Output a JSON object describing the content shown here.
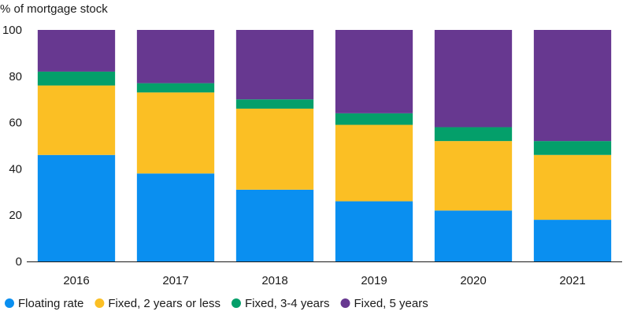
{
  "chart_data": {
    "type": "bar",
    "stacked": true,
    "ylabel": "% of mortgage stock",
    "ylim": [
      0,
      100
    ],
    "yticks": [
      0,
      20,
      40,
      60,
      80,
      100
    ],
    "categories": [
      "2016",
      "2017",
      "2018",
      "2019",
      "2020",
      "2021"
    ],
    "series": [
      {
        "name": "Floating rate",
        "color": "#0a8ff0",
        "values": [
          46,
          38,
          31,
          26,
          22,
          18
        ]
      },
      {
        "name": "Fixed, 2 years or less",
        "color": "#fbbf24",
        "values": [
          30,
          35,
          35,
          33,
          30,
          28
        ]
      },
      {
        "name": "Fixed, 3-4 years",
        "color": "#049f6a",
        "values": [
          6,
          4,
          4,
          5,
          6,
          6
        ]
      },
      {
        "name": "Fixed, 5 years",
        "color": "#673890",
        "values": [
          18,
          23,
          30,
          36,
          42,
          48
        ]
      }
    ],
    "legend_position": "bottom",
    "grid": false
  }
}
